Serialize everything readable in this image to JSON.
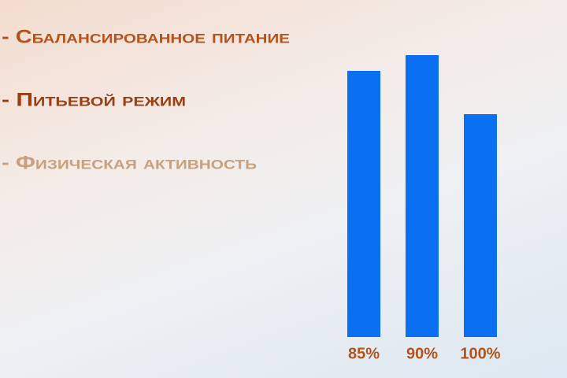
{
  "bullets": [
    {
      "text": "- Сбалансированное питание",
      "color": "#b4531b"
    },
    {
      "text": "- Питьевой режим",
      "color": "#9b3e12"
    },
    {
      "text": "- Физическая активность",
      "color": "#c9a07c"
    }
  ],
  "chart_data": {
    "type": "bar",
    "categories": [
      "85%",
      "90%",
      "100%"
    ],
    "values": [
      338,
      358,
      283
    ],
    "color": "#0a6ff0",
    "label_color": "#b4531b",
    "ylim": [
      0,
      358
    ]
  }
}
